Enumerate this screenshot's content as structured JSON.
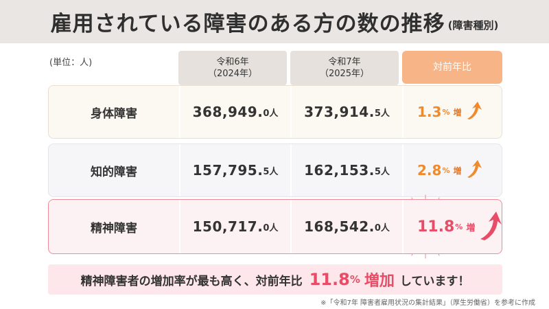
{
  "title": {
    "main": "雇用されている障害のある方の数の推移",
    "sub": "(障害種別)"
  },
  "unit_label": "(単位：人)",
  "columns": [
    {
      "line1": "令和6年",
      "line2": "（2024年）"
    },
    {
      "line1": "令和7年",
      "line2": "（2025年）"
    },
    {
      "line1": "対前年比",
      "line2": ""
    }
  ],
  "rows": [
    {
      "label": "身体障害",
      "v2024_int": "368,949.",
      "v2024_dec": "0人",
      "v2025_int": "373,914.",
      "v2025_dec": "5人",
      "change_big": "1.3",
      "change_pct": "%",
      "change_word": "増"
    },
    {
      "label": "知的障害",
      "v2024_int": "157,795.",
      "v2024_dec": "5人",
      "v2025_int": "162,153.",
      "v2025_dec": "5人",
      "change_big": "2.8",
      "change_pct": "%",
      "change_word": "増"
    },
    {
      "label": "精神障害",
      "v2024_int": "150,717.",
      "v2024_dec": "0人",
      "v2025_int": "168,542.",
      "v2025_dec": "0人",
      "change_big": "11.8",
      "change_pct": "%",
      "change_word": "増"
    }
  ],
  "banner": {
    "text_before": "精神障害者の増加率が最も高く、対前年比",
    "highlight_big": "11.8",
    "highlight_pct": "%",
    "highlight_word": "増加",
    "text_after": "しています！"
  },
  "note": "※「令和7年 障害者雇用状況の集計結果」（厚生労働省）を参考に作成",
  "colors": {
    "orange": "#ef8a2d",
    "pink": "#e84c67",
    "header_orange": "#f6b487"
  }
}
